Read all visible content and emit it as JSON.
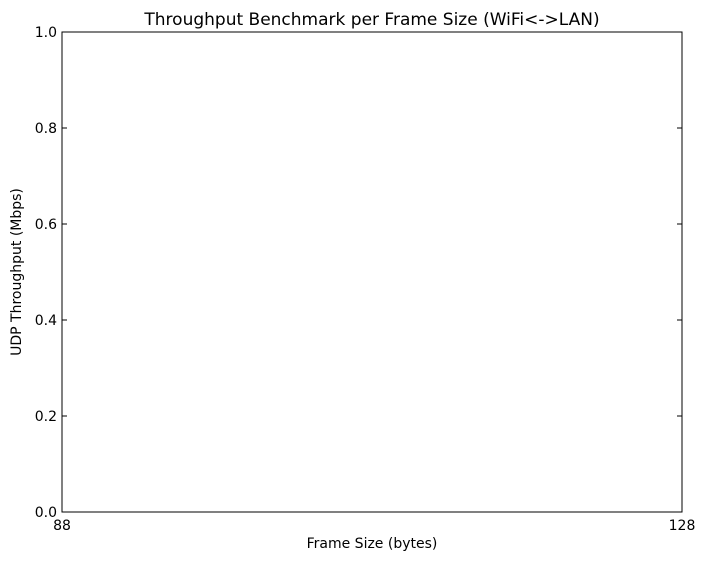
{
  "chart_data": {
    "type": "line",
    "title": "Throughput Benchmark per Frame Size (WiFi<->LAN)",
    "xlabel": "Frame Size (bytes)",
    "ylabel": "UDP Throughput (Mbps)",
    "xlim": [
      88,
      128
    ],
    "ylim": [
      0.0,
      1.0
    ],
    "x_ticks": [
      "88",
      "128"
    ],
    "y_ticks": [
      "0.0",
      "0.2",
      "0.4",
      "0.6",
      "0.8",
      "1.0"
    ],
    "series": [],
    "grid": false,
    "legend": "none"
  }
}
